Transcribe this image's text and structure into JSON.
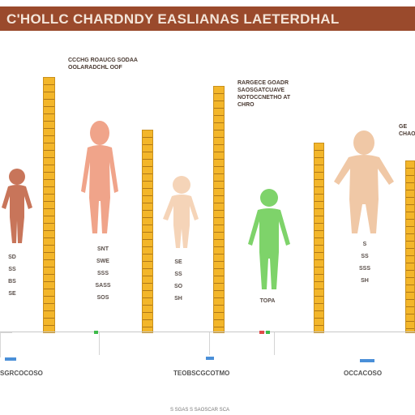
{
  "header": {
    "title": "C'HOLLC CHARDNDY EASLIANAS LAETERDHAL",
    "bar_color": "#9a4a2c",
    "text_color": "#f3e4d8"
  },
  "captions": [
    "CCCHG ROAUCG SODAA\nOOLARADCHL OOF",
    "RARGECE GOADR\nSAOSGATCUAVE\nNOTOCCNETHO AT\nCHRO",
    "GE\nCHAO"
  ],
  "figure_labels": [
    "SD\nSS\nBS\nSE",
    "SNT\nSWE\nSSS\nSASS\nSOS",
    "SE\nSS\nSO\nSH",
    "TOPA",
    "S\nSS\nSSS\nSH"
  ],
  "footer": {
    "left": "SGRCOCOSO",
    "center": "TEOBSCGCOTMO",
    "right": "OCCACOSO",
    "bottom": "S SGAS S SAOSCAR SCA"
  },
  "figures": [
    {
      "icon": "child-figure-icon",
      "color": "#c8755a"
    },
    {
      "icon": "child-figure-icon",
      "color": "#f0a48a"
    },
    {
      "icon": "child-figure-icon",
      "color": "#f5d4b8"
    },
    {
      "icon": "child-figure-icon",
      "color": "#7ed36a"
    },
    {
      "icon": "child-figure-icon",
      "color": "#f0c8a6"
    }
  ],
  "accents": {
    "ruler": "#f3b62a",
    "green_marker": "#3dbb4a",
    "red_marker": "#e04a4a",
    "blue_marker": "#4a8fd8"
  }
}
